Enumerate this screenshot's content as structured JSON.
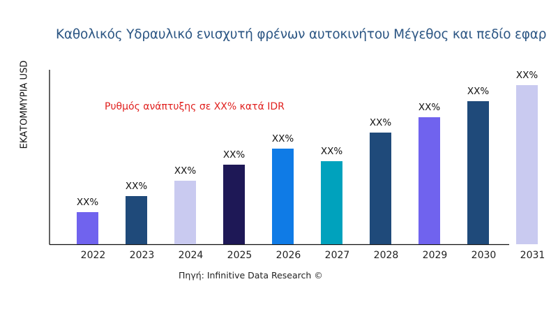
{
  "chart_data": {
    "type": "bar",
    "title": "Καθολικός Υδραυλικό ενισχυτή φρένων αυτοκινήτου Μέγεθος και πεδίο εφαρ",
    "ylabel": "ΕΚΑΤΟΜΜΥΡΙΑ USD",
    "xlabel": "",
    "annotation": "Ρυθμός ανάπτυξης σε XX% κατά IDR",
    "source": "Πηγή: Infinitive Data Research ©",
    "categories": [
      "2022",
      "2023",
      "2024",
      "2025",
      "2026",
      "2027",
      "2028",
      "2029",
      "2030",
      "2031"
    ],
    "values": [
      46,
      69,
      91,
      114,
      137,
      119,
      160,
      182,
      205,
      228
    ],
    "data_labels": [
      "XX%",
      "XX%",
      "XX%",
      "XX%",
      "XX%",
      "XX%",
      "XX%",
      "XX%",
      "XX%",
      "XX%"
    ],
    "colors": [
      "#7063ee",
      "#1f4a7a",
      "#c9caf0",
      "#1e1856",
      "#0f7be6",
      "#00a2bd",
      "#1f4a7a",
      "#7063ee",
      "#1f4a7a",
      "#c9caf0"
    ],
    "ylim": [
      0,
      250
    ],
    "grid": false,
    "y_ticks_shown": false
  }
}
